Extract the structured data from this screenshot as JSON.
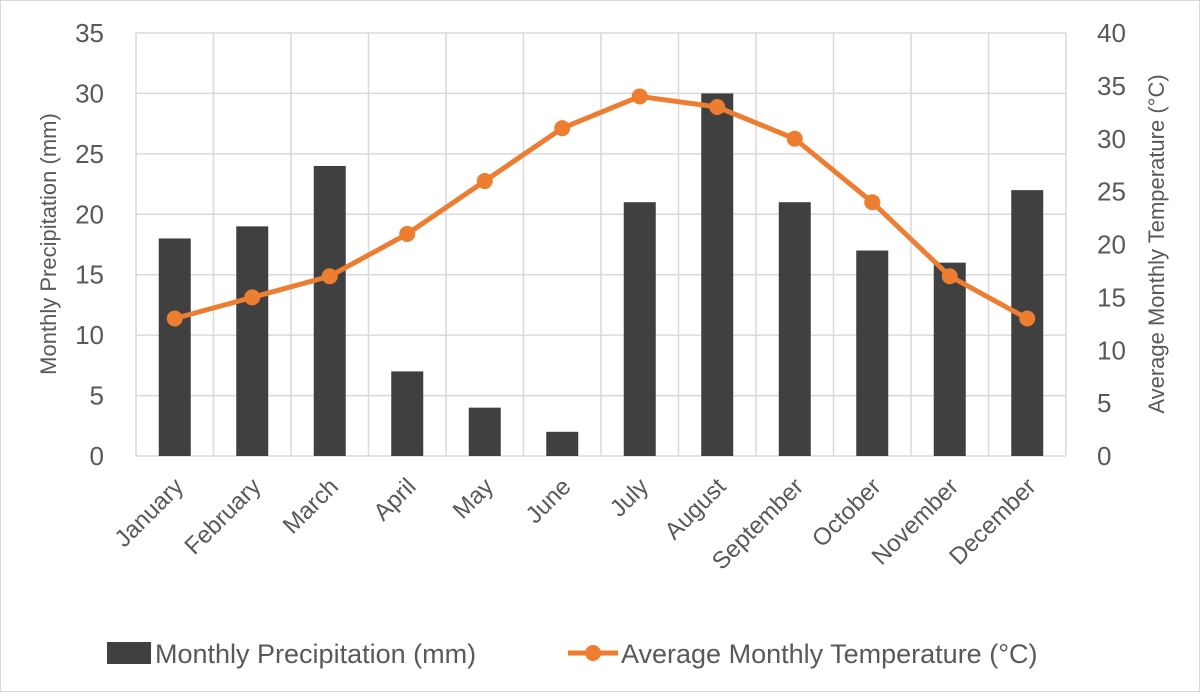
{
  "chart_data": {
    "type": "bar",
    "title": "",
    "categories": [
      "January",
      "February",
      "March",
      "April",
      "May",
      "June",
      "July",
      "August",
      "September",
      "October",
      "November",
      "December"
    ],
    "series": [
      {
        "name": "Monthly Precipitation  (mm)",
        "type": "bar",
        "axis": "left",
        "color": "#404040",
        "values": [
          18,
          19,
          24,
          7,
          4,
          2,
          21,
          30,
          21,
          17,
          16,
          22
        ]
      },
      {
        "name": "Average Monthly  Temperature (°C)",
        "type": "line",
        "axis": "right",
        "color": "#ED7D31",
        "marker": "circle",
        "values": [
          13,
          15,
          17,
          21,
          26,
          31,
          34,
          33,
          30,
          24,
          17,
          13
        ]
      }
    ],
    "y_left": {
      "label": "Monthly Precipitation  (mm)",
      "ylim": [
        0,
        35
      ],
      "ticks": [
        "0",
        "5",
        "10",
        "15",
        "20",
        "25",
        "30",
        "35"
      ]
    },
    "y_right": {
      "label": "Average Monthly  Temperature (°C)",
      "ylim": [
        0,
        40
      ],
      "ticks": [
        "0",
        "5",
        "10",
        "15",
        "20",
        "25",
        "30",
        "35",
        "40"
      ]
    },
    "xlabel": "",
    "grid": true,
    "legend": "bottom"
  }
}
